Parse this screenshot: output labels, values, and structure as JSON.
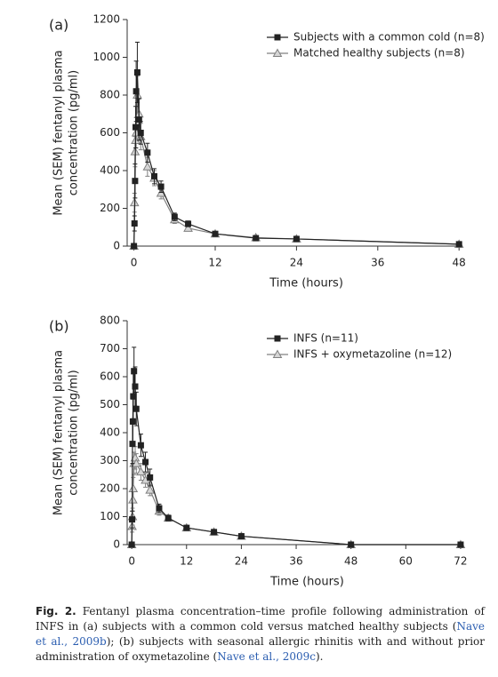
{
  "chart_data": [
    {
      "type": "line",
      "panel_label": "(a)",
      "xlabel": "Time (hours)",
      "ylabel": [
        "Mean (SEM) fentanyl plasma",
        "concentration (pg/ml)"
      ],
      "x": [
        0,
        0.083,
        0.167,
        0.25,
        0.33,
        0.5,
        0.75,
        1,
        2,
        3,
        4,
        6,
        8,
        12,
        18,
        24,
        48
      ],
      "series": [
        {
          "name": "Subjects with a common cold (n=8)",
          "color": "#222222",
          "marker": "square",
          "values": [
            0,
            120,
            345,
            630,
            820,
            920,
            670,
            600,
            495,
            370,
            315,
            155,
            118,
            65,
            42,
            38,
            10
          ],
          "errors": [
            0,
            40,
            90,
            110,
            160,
            160,
            110,
            60,
            50,
            40,
            30,
            20,
            15,
            10,
            8,
            8,
            5
          ]
        },
        {
          "name": "Matched healthy subjects (n=8)",
          "color": "#808080",
          "marker": "triangle",
          "values": [
            0,
            230,
            500,
            560,
            600,
            800,
            700,
            580,
            420,
            360,
            280,
            140,
            95,
            65,
            45,
            38,
            10
          ],
          "errors": [
            0,
            50,
            80,
            70,
            80,
            100,
            90,
            70,
            50,
            40,
            30,
            20,
            15,
            10,
            8,
            8,
            5
          ]
        }
      ],
      "xlim": [
        -1,
        48.5
      ],
      "xticks": [
        0,
        12,
        24,
        36,
        48
      ],
      "ylim": [
        0,
        1200
      ],
      "yticks": [
        0,
        200,
        400,
        600,
        800,
        1000,
        1200
      ],
      "legend": "upper right",
      "grid": false
    },
    {
      "type": "line",
      "panel_label": "(b)",
      "xlabel": "Time (hours)",
      "ylabel": [
        "Mean (SEM) fentanyl plasma",
        "concentration (pg/ml)"
      ],
      "x": [
        0,
        0.083,
        0.167,
        0.25,
        0.33,
        0.5,
        0.75,
        1,
        2,
        3,
        4,
        6,
        8,
        12,
        18,
        24,
        48,
        72
      ],
      "series": [
        {
          "name": "INFS (n=11)",
          "color": "#222222",
          "marker": "square",
          "values": [
            0,
            90,
            360,
            440,
            530,
            620,
            565,
            485,
            355,
            295,
            240,
            130,
            95,
            60,
            45,
            30,
            0,
            0
          ],
          "errors": [
            0,
            30,
            70,
            80,
            80,
            85,
            70,
            60,
            40,
            35,
            30,
            15,
            10,
            8,
            6,
            5,
            0,
            0
          ]
        },
        {
          "name": "INFS + oxymetazoline (n=12)",
          "color": "#808080",
          "marker": "triangle",
          "values": [
            0,
            65,
            100,
            160,
            200,
            290,
            310,
            290,
            260,
            230,
            195,
            120,
            95,
            60,
            45,
            30,
            0,
            0
          ],
          "errors": [
            0,
            20,
            30,
            40,
            40,
            40,
            40,
            35,
            30,
            25,
            20,
            15,
            10,
            8,
            6,
            5,
            0,
            0
          ]
        }
      ],
      "xlim": [
        -1,
        72.4
      ],
      "xticks": [
        0,
        12,
        24,
        36,
        48,
        60,
        72
      ],
      "ylim": [
        0,
        800
      ],
      "yticks": [
        0,
        100,
        200,
        300,
        400,
        500,
        600,
        700,
        800
      ],
      "legend": "upper right",
      "grid": false
    }
  ],
  "caption": {
    "label": "Fig. 2.",
    "parts": [
      "Fentanyl plasma concentration–time profile following administration of INFS in (a) subjects with a common cold versus matched healthy subjects (",
      "Nave et al., 2009b",
      "); (b) subjects with seasonal allergic rhinitis with and without prior administration of oxymetazoline (",
      "Nave et al., 2009c",
      ")."
    ]
  }
}
